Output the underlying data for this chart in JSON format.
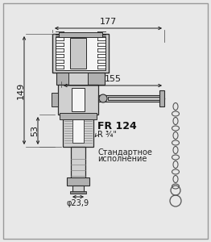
{
  "bg_color": "#e8e8e8",
  "border_color": "#999999",
  "line_color": "#2a2a2a",
  "dim_color": "#1a1a1a",
  "fill_light": "#d0d0d0",
  "fill_mid": "#b0b0b0",
  "fill_dark": "#888888",
  "fill_white": "#f5f5f5",
  "title": "FR 124",
  "subtitle_1": "Стандартное",
  "subtitle_2": "исполнение",
  "dim_177": "177",
  "dim_155": "155",
  "dim_149": "149",
  "dim_53": "53",
  "dim_r": "R ¾\"",
  "dim_phi": "φ23,9",
  "fig_w": 2.62,
  "fig_h": 3.0,
  "dpi": 100
}
